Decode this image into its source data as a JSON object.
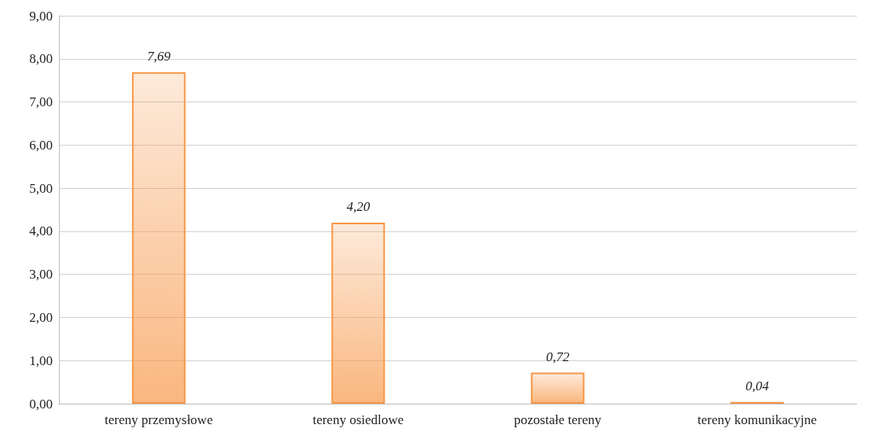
{
  "chart_data": {
    "type": "bar",
    "categories": [
      "tereny przemysłowe",
      "tereny osiedlowe",
      "pozostałe tereny",
      "tereny komunikacyjne"
    ],
    "values": [
      7.69,
      4.2,
      0.72,
      0.04
    ],
    "value_labels": [
      "7,69",
      "4,20",
      "0,72",
      "0,04"
    ],
    "color": "#f79646",
    "ylim": [
      0,
      9
    ],
    "yticks": [
      {
        "value": 0,
        "label": "0,00"
      },
      {
        "value": 1,
        "label": "1,00"
      },
      {
        "value": 2,
        "label": "2,00"
      },
      {
        "value": 3,
        "label": "3,00"
      },
      {
        "value": 4,
        "label": "4,00"
      },
      {
        "value": 5,
        "label": "5,00"
      },
      {
        "value": 6,
        "label": "6,00"
      },
      {
        "value": 7,
        "label": "7,00"
      },
      {
        "value": 8,
        "label": "8,00"
      },
      {
        "value": 9,
        "label": "9,00"
      }
    ],
    "grid": "y"
  }
}
